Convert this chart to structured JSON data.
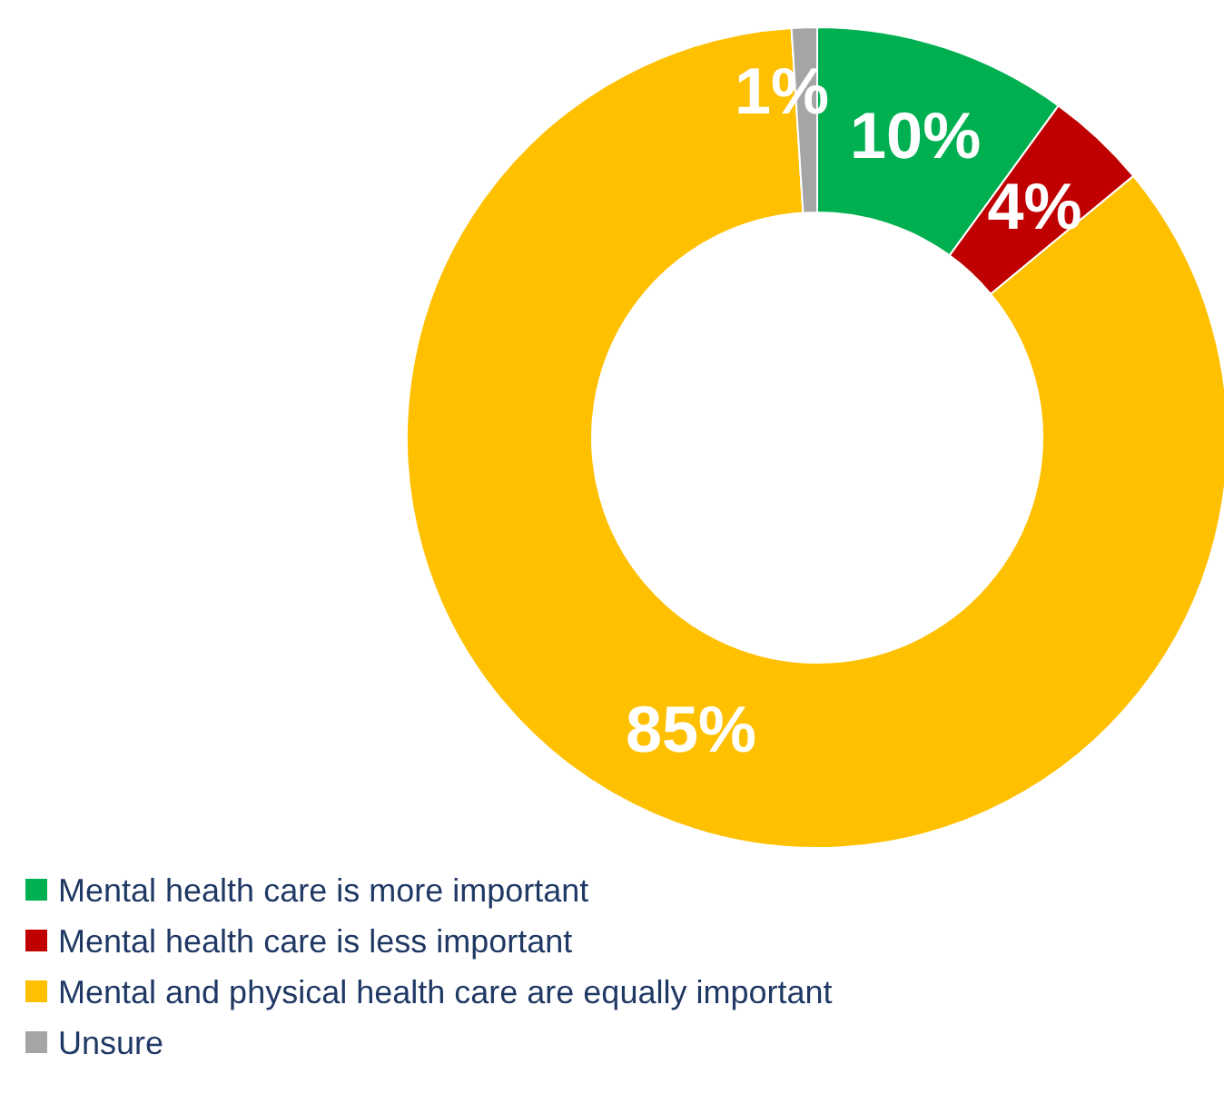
{
  "chart_data": {
    "type": "donut",
    "categories": [
      "Mental health care is more important",
      "Mental health care is less important",
      "Mental and physical health care are equally important",
      "Unsure"
    ],
    "values": [
      10,
      4,
      85,
      1
    ],
    "colors": [
      "#00b050",
      "#c00000",
      "#ffc000",
      "#a5a5a5"
    ],
    "value_labels": [
      "10%",
      "4%",
      "85%",
      "1%"
    ],
    "legend": "bottom"
  }
}
